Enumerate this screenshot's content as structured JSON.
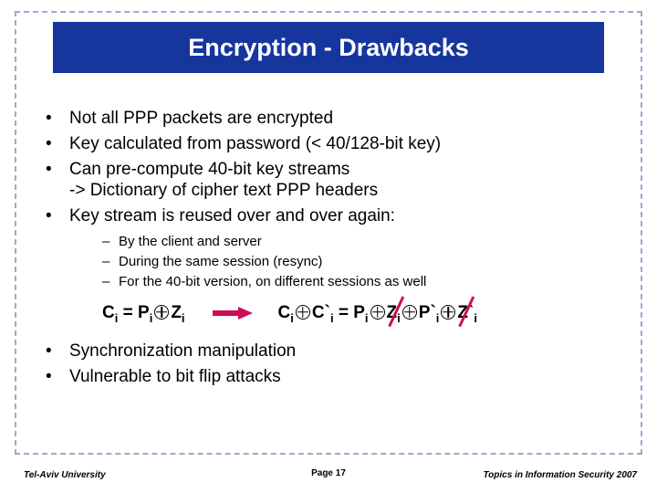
{
  "title": "Encryption - Drawbacks",
  "bullets_top": [
    "Not all PPP packets are encrypted",
    "Key calculated from password (< 40/128-bit key)",
    "Can pre-compute 40-bit key streams\n-> Dictionary of cipher text PPP headers",
    "Key stream is reused over and over again:"
  ],
  "sub_bullets": [
    "By the client and server",
    "During the same session (resync)",
    "For the 40-bit version, on different sessions as well"
  ],
  "bullets_bottom": [
    "Synchronization manipulation",
    "Vulnerable to bit flip attacks"
  ],
  "formula": {
    "left_parts": [
      "C",
      "i",
      " = P",
      "i",
      "Z",
      "i"
    ],
    "right_parts": [
      "C",
      "i",
      "C`",
      "i",
      " = P",
      "i",
      "Z",
      "i",
      "P`",
      "i",
      "Z`",
      "i"
    ]
  },
  "footer": {
    "left": "Tel-Aviv University",
    "center_prefix": "Page ",
    "page": "17",
    "right": "Topics in Information Security 2007"
  },
  "colors": {
    "title_bg": "#16369e",
    "title_fg": "#ffffff",
    "accent": "#cf0b57",
    "frame": "#a7a3cf",
    "text": "#000000"
  }
}
